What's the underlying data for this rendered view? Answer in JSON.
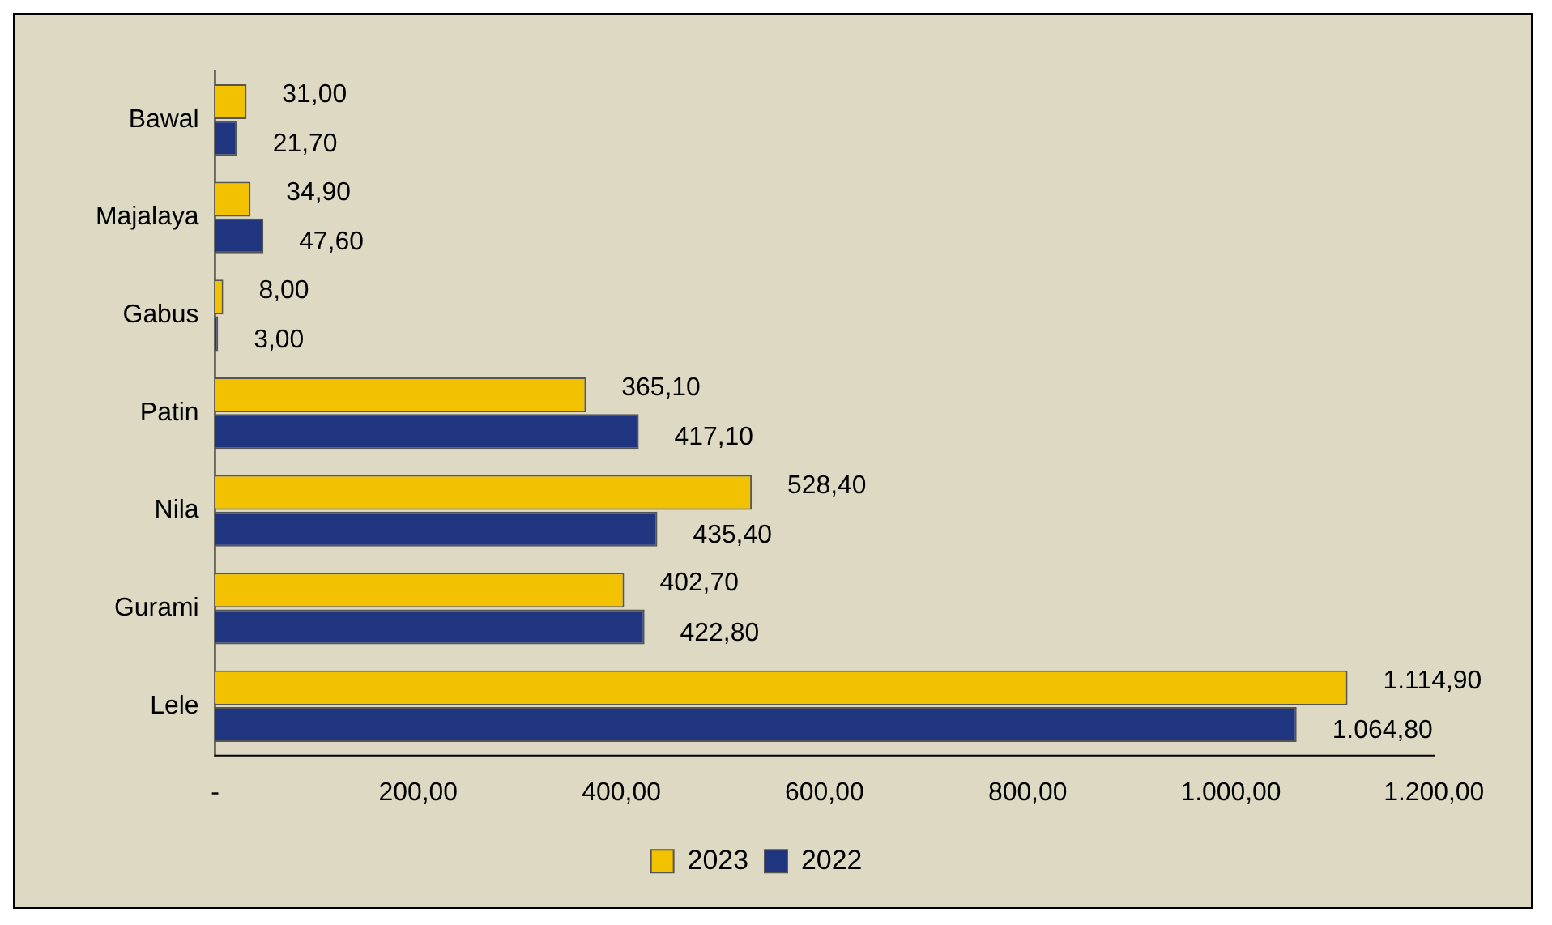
{
  "chart_data": {
    "type": "bar",
    "orientation": "horizontal",
    "categories": [
      "Bawal",
      "Majalaya",
      "Gabus",
      "Patin",
      "Nila",
      "Gurami",
      "Lele"
    ],
    "series": [
      {
        "name": "2023",
        "color": "#f2c200",
        "values": [
          31,
          34.9,
          8,
          365.1,
          528.4,
          402.7,
          1114.9
        ],
        "value_labels": [
          "31,00",
          "34,90",
          "8,00",
          "365,10",
          "528,40",
          "402,70",
          "1.114,90"
        ]
      },
      {
        "name": "2022",
        "color": "#1f3580",
        "values": [
          21.7,
          47.6,
          3,
          417.1,
          435.4,
          422.8,
          1064.8
        ],
        "value_labels": [
          "21,70",
          "47,60",
          "3,00",
          "417,10",
          "435,40",
          "422,80",
          "1.064,80"
        ]
      }
    ],
    "xlim": [
      0,
      1200
    ],
    "xticks": [
      {
        "value": 0,
        "label": "-"
      },
      {
        "value": 200,
        "label": "200,00"
      },
      {
        "value": 400,
        "label": "400,00"
      },
      {
        "value": 600,
        "label": "600,00"
      },
      {
        "value": 800,
        "label": "800,00"
      },
      {
        "value": 1000,
        "label": "1.000,00"
      },
      {
        "value": 1200,
        "label": "1.200,00"
      }
    ],
    "grid": false,
    "legend": "bottom"
  }
}
